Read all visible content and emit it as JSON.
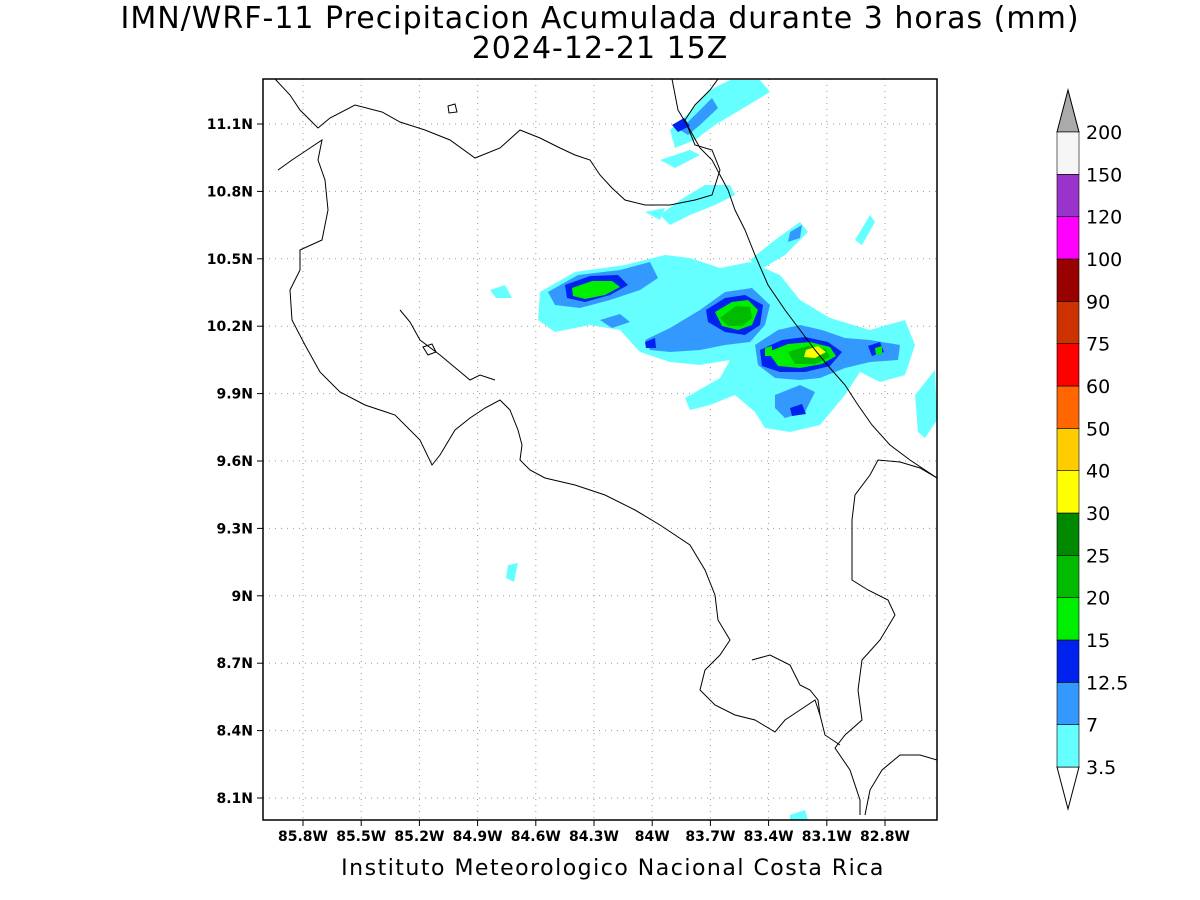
{
  "title": {
    "line1": "IMN/WRF-11 Precipitacion Acumulada durante 3 horas (mm)",
    "line2": "2024-12-21 15Z"
  },
  "credit": "Instituto Meteorologico Nacional Costa Rica",
  "map": {
    "lon_ticks": [
      "85.8W",
      "85.5W",
      "85.2W",
      "84.9W",
      "84.6W",
      "84.3W",
      "84W",
      "83.7W",
      "83.4W",
      "83.1W",
      "82.8W"
    ],
    "lat_ticks": [
      "11.1N",
      "10.8N",
      "10.5N",
      "10.2N",
      "9.9N",
      "9.6N",
      "9.3N",
      "9N",
      "8.7N",
      "8.4N",
      "8.1N"
    ],
    "grid": "dotted"
  },
  "colorbar": {
    "units": "mm",
    "levels": [
      "3.5",
      "7",
      "12.5",
      "15",
      "20",
      "25",
      "30",
      "40",
      "50",
      "60",
      "75",
      "90",
      "100",
      "120",
      "150",
      "200"
    ],
    "colors": [
      "#66ffff",
      "#3399ff",
      "#0022ee",
      "#00ee00",
      "#00bb00",
      "#008800",
      "#ffff00",
      "#ffcc00",
      "#ff6600",
      "#ff0000",
      "#cc3300",
      "#990000",
      "#ff00ff",
      "#9933cc",
      "#f5f5f5",
      "#aaaaaa"
    ],
    "low_end_color": "#ffffff",
    "high_end_color": "#aaaaaa"
  }
}
